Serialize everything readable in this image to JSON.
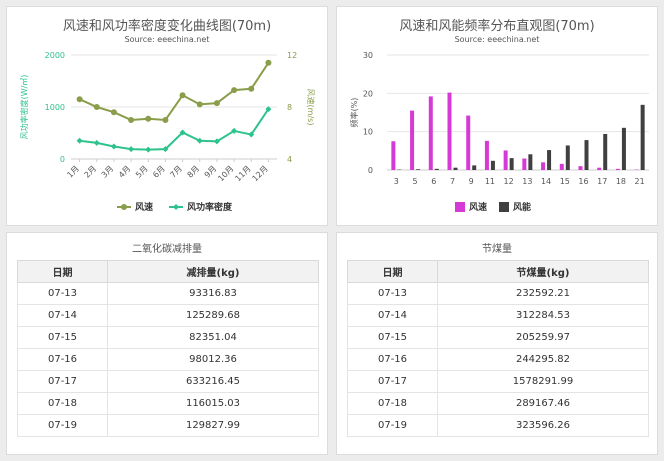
{
  "chart1": {
    "title": "风速和风功率密度变化曲线图(70m)",
    "source": "Source: eeechina.net",
    "ylabel_left": "风功率密度(W/㎡)",
    "ylabel_right": "风速(m/s)",
    "legend": [
      "风速",
      "风功率密度"
    ],
    "colors": {
      "speed": "#8a9d4a",
      "density": "#2ec28c"
    }
  },
  "chart2": {
    "title": "风速和风能频率分布直观图(70m)",
    "source": "Source: eeechina.net",
    "ylabel": "频率(%)",
    "legend": [
      "风速",
      "风能"
    ],
    "colors": {
      "speed": "#d63ad6",
      "energy": "#404040"
    }
  },
  "chart_data": [
    {
      "type": "line",
      "categories": [
        "1月",
        "2月",
        "3月",
        "4月",
        "5月",
        "6月",
        "7月",
        "8月",
        "9月",
        "10月",
        "11月",
        "12月"
      ],
      "series": [
        {
          "name": "风速",
          "axis": "right",
          "values": [
            8.6,
            8.0,
            7.6,
            7.0,
            7.1,
            7.0,
            8.9,
            8.2,
            8.3,
            9.3,
            9.4,
            11.4
          ]
        },
        {
          "name": "风功率密度",
          "axis": "left",
          "values": [
            350,
            310,
            240,
            190,
            180,
            190,
            510,
            350,
            340,
            540,
            470,
            960
          ]
        }
      ],
      "y_left": {
        "ticks": [
          0,
          1000,
          2000
        ],
        "range": [
          0,
          2000
        ]
      },
      "y_right": {
        "ticks": [
          4,
          8,
          12
        ],
        "range": [
          4,
          12
        ]
      },
      "title": "风速和风功率密度变化曲线图(70m)",
      "legend_position": "bottom"
    },
    {
      "type": "bar",
      "categories": [
        "3",
        "5",
        "6",
        "7",
        "9",
        "11",
        "12",
        "13",
        "14",
        "15",
        "16",
        "17",
        "18",
        "21"
      ],
      "series": [
        {
          "name": "风速",
          "values": [
            7.5,
            15.5,
            19.2,
            20.2,
            14.2,
            7.6,
            5.1,
            3.0,
            2.0,
            1.6,
            1.0,
            0.6,
            0.3,
            0.1
          ]
        },
        {
          "name": "风能",
          "values": [
            0.1,
            0.2,
            0.3,
            0.6,
            1.2,
            2.4,
            3.1,
            4.1,
            5.2,
            6.4,
            7.8,
            9.4,
            11.0,
            17.0
          ]
        }
      ],
      "y": {
        "ticks": [
          0,
          10,
          20,
          30
        ],
        "range": [
          0,
          30
        ]
      },
      "title": "风速和风能频率分布直观图(70m)",
      "legend_position": "bottom"
    }
  ],
  "table1": {
    "title": "二氧化碳减排量",
    "headers": [
      "日期",
      "减排量(kg)"
    ],
    "rows": [
      [
        "07-13",
        "93316.83"
      ],
      [
        "07-14",
        "125289.68"
      ],
      [
        "07-15",
        "82351.04"
      ],
      [
        "07-16",
        "98012.36"
      ],
      [
        "07-17",
        "633216.45"
      ],
      [
        "07-18",
        "116015.03"
      ],
      [
        "07-19",
        "129827.99"
      ]
    ]
  },
  "table2": {
    "title": "节煤量",
    "headers": [
      "日期",
      "节煤量(kg)"
    ],
    "rows": [
      [
        "07-13",
        "232592.21"
      ],
      [
        "07-14",
        "312284.53"
      ],
      [
        "07-15",
        "205259.97"
      ],
      [
        "07-16",
        "244295.82"
      ],
      [
        "07-17",
        "1578291.99"
      ],
      [
        "07-18",
        "289167.46"
      ],
      [
        "07-19",
        "323596.26"
      ]
    ]
  }
}
